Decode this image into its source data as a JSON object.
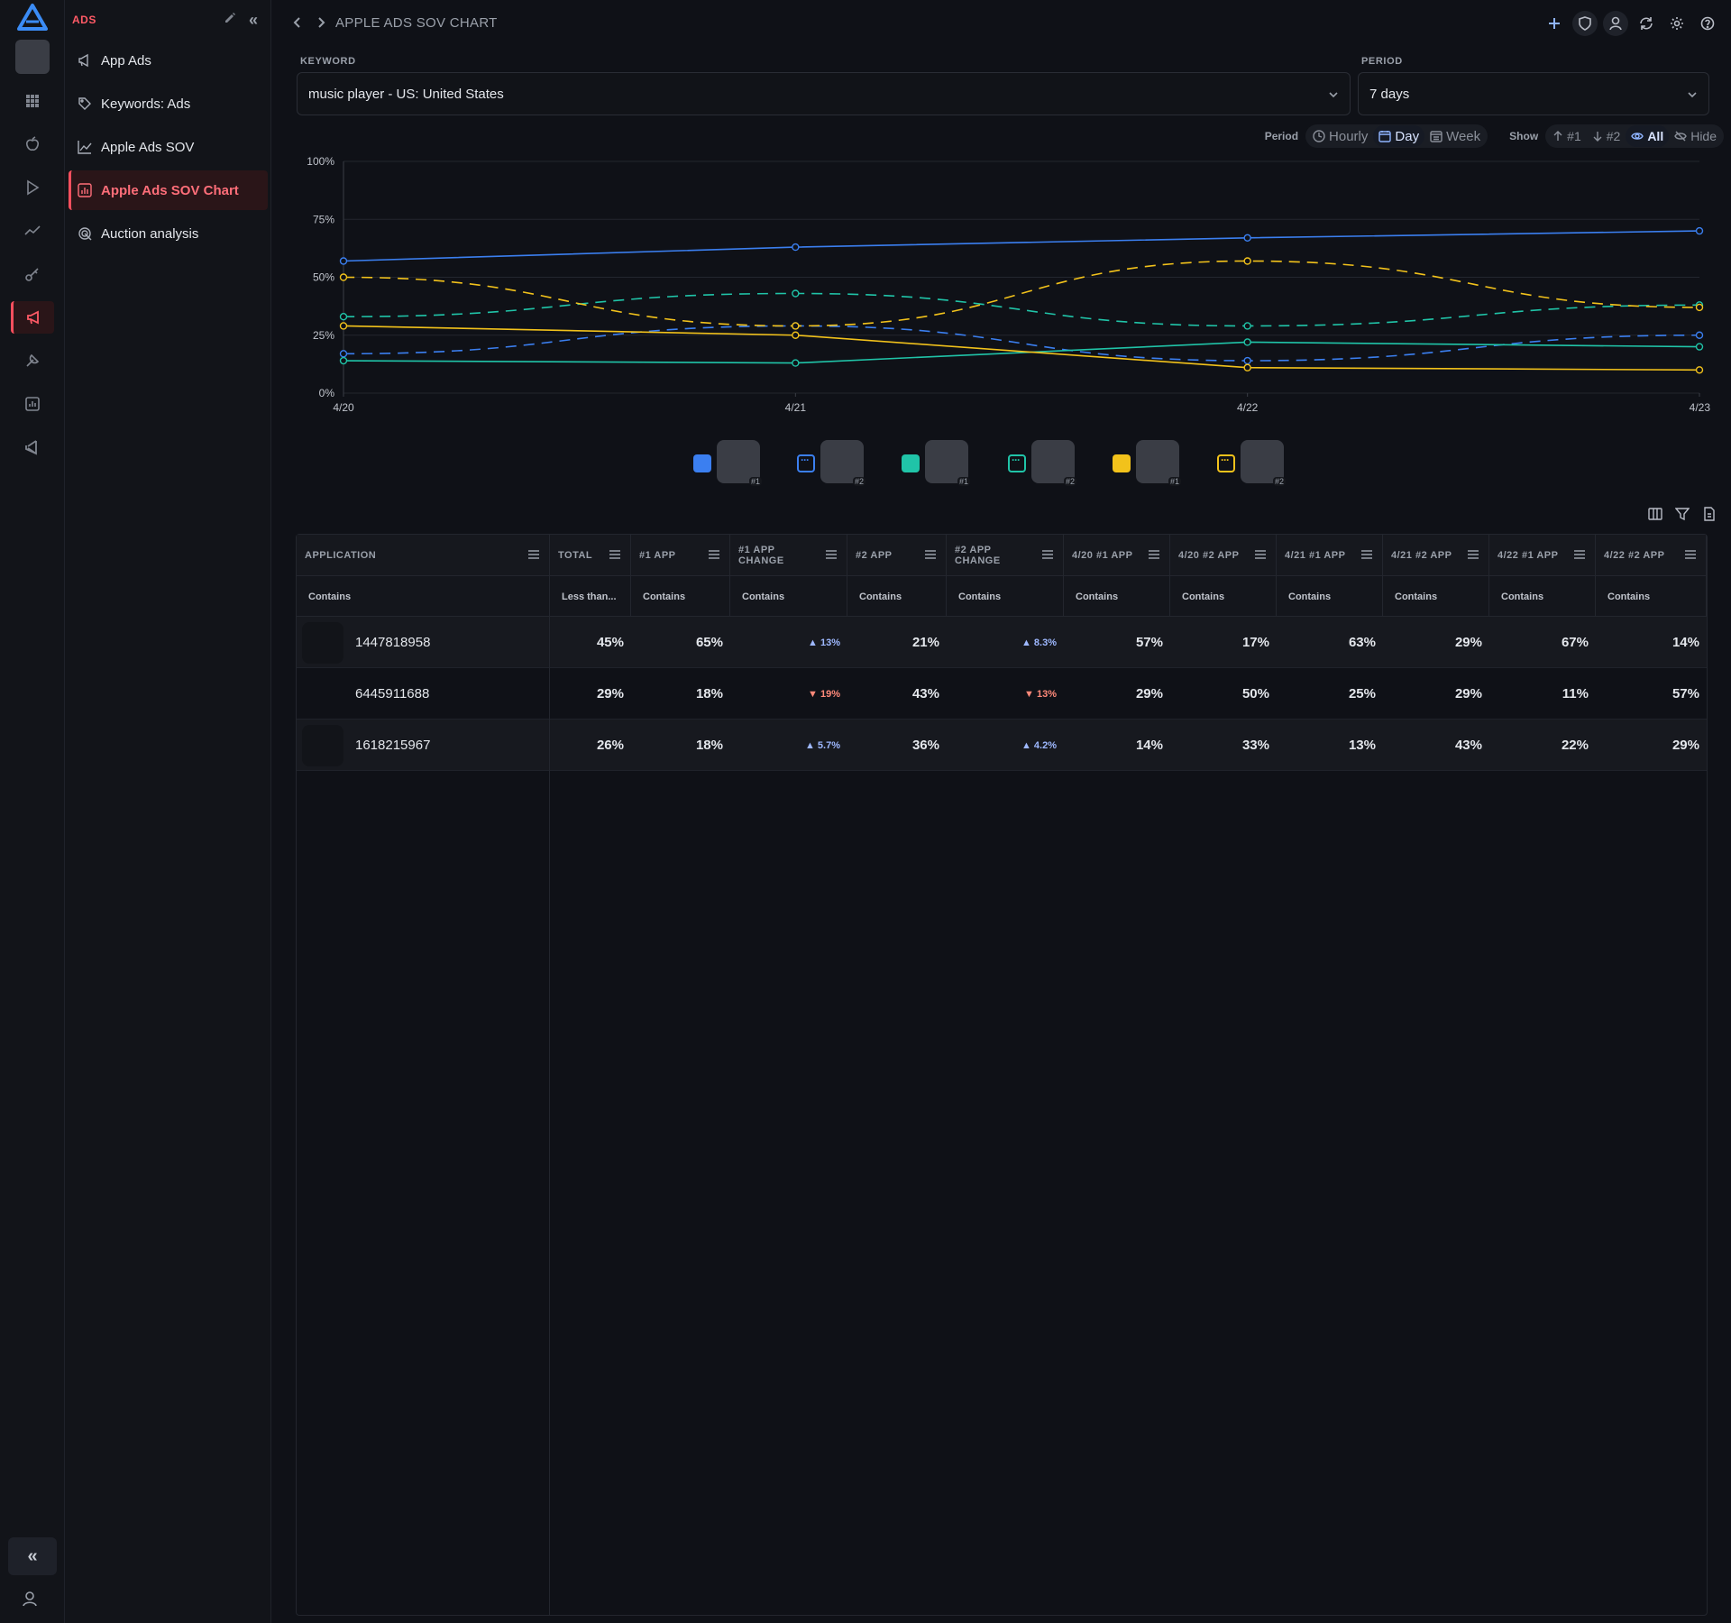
{
  "sidebar": {
    "title": "ADS",
    "items": [
      {
        "label": "App Ads",
        "icon": "megaphone-icon"
      },
      {
        "label": "Keywords: Ads",
        "icon": "keyword-tag-icon"
      },
      {
        "label": "Apple Ads SOV",
        "icon": "line-chart-icon"
      },
      {
        "label": "Apple Ads SOV Chart",
        "icon": "bar-chart-icon",
        "active": true
      },
      {
        "label": "Auction analysis",
        "icon": "target-icon"
      }
    ]
  },
  "header": {
    "breadcrumb": "APPLE ADS SOV CHART"
  },
  "filters": {
    "keyword_label": "KEYWORD",
    "keyword_value": "music player - US: United States",
    "period_label": "PERIOD",
    "period_value": "7 days"
  },
  "toggles": {
    "period_label": "Period",
    "hourly": "Hourly",
    "day": "Day",
    "week": "Week",
    "show_label": "Show",
    "rank1": "#1",
    "rank2": "#2",
    "all": "All",
    "hide": "Hide"
  },
  "colors": {
    "blue": "#3b7ff0",
    "teal": "#20c4a8",
    "yellow": "#f2c21b",
    "accent": "#ff5a66"
  },
  "chart_data": {
    "type": "line",
    "x": [
      "4/20",
      "4/21",
      "4/22",
      "4/23"
    ],
    "yticks": [
      "0%",
      "25%",
      "50%",
      "75%",
      "100%"
    ],
    "ylim": [
      0,
      100
    ],
    "series": [
      {
        "color": "blue",
        "dashed": false,
        "values": [
          57,
          63,
          67,
          70
        ]
      },
      {
        "color": "blue",
        "dashed": true,
        "values": [
          17,
          29,
          14,
          25
        ]
      },
      {
        "color": "teal",
        "dashed": false,
        "values": [
          14,
          13,
          22,
          20
        ]
      },
      {
        "color": "teal",
        "dashed": true,
        "values": [
          33,
          43,
          29,
          38
        ]
      },
      {
        "color": "yellow",
        "dashed": false,
        "values": [
          29,
          25,
          11,
          10
        ]
      },
      {
        "color": "yellow",
        "dashed": true,
        "values": [
          50,
          29,
          57,
          37
        ]
      }
    ]
  },
  "legend": [
    {
      "color": "blue",
      "dashed": false,
      "rank": "#1"
    },
    {
      "color": "blue",
      "dashed": true,
      "rank": "#2"
    },
    {
      "color": "teal",
      "dashed": false,
      "rank": "#1"
    },
    {
      "color": "teal",
      "dashed": true,
      "rank": "#2"
    },
    {
      "color": "yellow",
      "dashed": false,
      "rank": "#1"
    },
    {
      "color": "yellow",
      "dashed": true,
      "rank": "#2"
    }
  ],
  "table": {
    "columns": [
      "APPLICATION",
      "TOTAL",
      "#1 APP",
      "#1 APP CHANGE",
      "#2 APP",
      "#2 APP CHANGE",
      "4/20 #1 APP",
      "4/20 #2 APP",
      "4/21 #1 APP",
      "4/21 #2 APP",
      "4/22 #1 APP",
      "4/22 #2 APP"
    ],
    "filters": [
      "Contains",
      "Less than...",
      "Contains",
      "Contains",
      "Contains",
      "Contains",
      "Contains",
      "Contains",
      "Contains",
      "Contains",
      "Contains",
      "Contains"
    ],
    "rows": [
      {
        "app": "1447818958",
        "total": "45%",
        "app1": "65%",
        "app1_change": "13%",
        "app1_dir": "up",
        "app2": "21%",
        "app2_change": "8.3%",
        "app2_dir": "up",
        "d1_1": "57%",
        "d1_2": "17%",
        "d2_1": "63%",
        "d2_2": "29%",
        "d3_1": "67%",
        "d3_2": "14%"
      },
      {
        "app": "6445911688",
        "total": "29%",
        "app1": "18%",
        "app1_change": "19%",
        "app1_dir": "down",
        "app2": "43%",
        "app2_change": "13%",
        "app2_dir": "down",
        "d1_1": "29%",
        "d1_2": "50%",
        "d2_1": "25%",
        "d2_2": "29%",
        "d3_1": "11%",
        "d3_2": "57%"
      },
      {
        "app": "1618215967",
        "total": "26%",
        "app1": "18%",
        "app1_change": "5.7%",
        "app1_dir": "up",
        "app2": "36%",
        "app2_change": "4.2%",
        "app2_dir": "up",
        "d1_1": "14%",
        "d1_2": "33%",
        "d2_1": "13%",
        "d2_2": "43%",
        "d3_1": "22%",
        "d3_2": "29%"
      }
    ]
  }
}
